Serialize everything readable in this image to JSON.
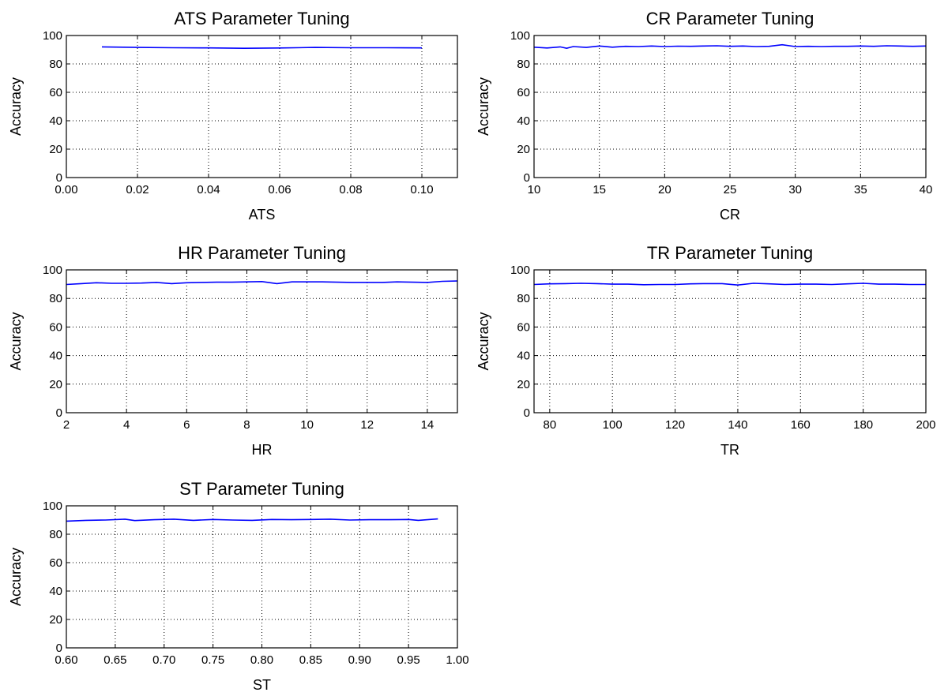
{
  "style": {
    "line_color": "#0000ff",
    "grid_style": "dotted",
    "background": "#ffffff"
  },
  "chart_data": [
    {
      "type": "line",
      "title": "ATS Parameter Tuning",
      "xlabel": "ATS",
      "ylabel": "Accuracy",
      "xlim": [
        0.0,
        0.11
      ],
      "ylim": [
        0,
        100
      ],
      "xticks": [
        "0.00",
        "0.02",
        "0.04",
        "0.06",
        "0.08",
        "0.10"
      ],
      "yticks": [
        "0",
        "20",
        "40",
        "60",
        "80",
        "100"
      ],
      "grid": true,
      "x": [
        0.01,
        0.02,
        0.03,
        0.04,
        0.05,
        0.06,
        0.07,
        0.08,
        0.09,
        0.1
      ],
      "y": [
        92.0,
        91.6,
        91.4,
        91.3,
        91.0,
        91.2,
        91.6,
        91.4,
        91.4,
        91.3
      ]
    },
    {
      "type": "line",
      "title": "CR Parameter Tuning",
      "xlabel": "CR",
      "ylabel": "Accuracy",
      "xlim": [
        10,
        40
      ],
      "ylim": [
        0,
        100
      ],
      "xticks": [
        "10",
        "15",
        "20",
        "25",
        "30",
        "35",
        "40"
      ],
      "yticks": [
        "0",
        "20",
        "40",
        "60",
        "80",
        "100"
      ],
      "grid": true,
      "x": [
        10,
        11,
        12,
        12.5,
        13,
        14,
        15,
        16,
        17,
        18,
        19,
        20,
        21,
        22,
        23,
        24,
        25,
        26,
        27,
        28,
        29,
        30,
        31,
        32,
        33,
        34,
        35,
        36,
        37,
        38,
        39,
        40
      ],
      "y": [
        91.8,
        91.2,
        92.0,
        91.0,
        92.2,
        91.6,
        92.6,
        91.8,
        92.4,
        92.2,
        92.6,
        92.2,
        92.5,
        92.4,
        92.6,
        92.8,
        92.4,
        92.6,
        92.2,
        92.4,
        93.5,
        92.2,
        92.4,
        92.2,
        92.4,
        92.4,
        92.6,
        92.4,
        92.8,
        92.6,
        92.4,
        92.6
      ]
    },
    {
      "type": "line",
      "title": "HR Parameter Tuning",
      "xlabel": "HR",
      "ylabel": "Accuracy",
      "xlim": [
        2,
        15
      ],
      "ylim": [
        0,
        100
      ],
      "xticks": [
        "2",
        "4",
        "6",
        "8",
        "10",
        "12",
        "14"
      ],
      "yticks": [
        "0",
        "20",
        "40",
        "60",
        "80",
        "100"
      ],
      "grid": true,
      "x": [
        2,
        2.5,
        3,
        3.5,
        4,
        4.5,
        5,
        5.5,
        6,
        6.5,
        7,
        7.5,
        8,
        8.5,
        9,
        9.5,
        10,
        10.5,
        11,
        11.5,
        12,
        12.5,
        13,
        13.5,
        14,
        14.5,
        15
      ],
      "y": [
        89.8,
        90.4,
        91.0,
        90.6,
        90.6,
        90.8,
        91.2,
        90.4,
        91.0,
        91.2,
        91.4,
        91.4,
        91.6,
        91.8,
        90.4,
        91.6,
        91.6,
        91.6,
        91.4,
        91.2,
        91.2,
        91.2,
        91.6,
        91.4,
        91.2,
        92.0,
        92.2
      ]
    },
    {
      "type": "line",
      "title": "TR Parameter Tuning",
      "xlabel": "TR",
      "ylabel": "Accuracy",
      "xlim": [
        75,
        200
      ],
      "ylim": [
        0,
        100
      ],
      "xticks": [
        "80",
        "100",
        "120",
        "140",
        "160",
        "180",
        "200"
      ],
      "yticks": [
        "0",
        "20",
        "40",
        "60",
        "80",
        "100"
      ],
      "grid": true,
      "x": [
        75,
        80,
        85,
        90,
        95,
        100,
        105,
        110,
        115,
        120,
        125,
        130,
        135,
        140,
        145,
        150,
        155,
        160,
        165,
        170,
        175,
        180,
        185,
        190,
        195,
        200
      ],
      "y": [
        89.8,
        90.2,
        90.4,
        90.6,
        90.4,
        90.0,
        90.0,
        89.6,
        89.8,
        89.8,
        90.2,
        90.4,
        90.4,
        89.4,
        90.6,
        90.2,
        89.8,
        90.0,
        90.0,
        89.8,
        90.2,
        90.6,
        90.0,
        90.0,
        89.8,
        89.8
      ]
    },
    {
      "type": "line",
      "title": "ST Parameter Tuning",
      "xlabel": "ST",
      "ylabel": "Accuracy",
      "xlim": [
        0.6,
        1.0
      ],
      "ylim": [
        0,
        100
      ],
      "xticks": [
        "0.60",
        "0.65",
        "0.70",
        "0.75",
        "0.80",
        "0.85",
        "0.90",
        "0.95",
        "1.00"
      ],
      "yticks": [
        "0",
        "20",
        "40",
        "60",
        "80",
        "100"
      ],
      "grid": true,
      "x": [
        0.6,
        0.62,
        0.64,
        0.66,
        0.67,
        0.69,
        0.71,
        0.73,
        0.75,
        0.77,
        0.79,
        0.81,
        0.83,
        0.85,
        0.87,
        0.89,
        0.91,
        0.93,
        0.95,
        0.96,
        0.98
      ],
      "y": [
        89.2,
        89.8,
        90.0,
        90.6,
        89.6,
        90.2,
        90.6,
        89.8,
        90.4,
        90.0,
        89.8,
        90.4,
        90.2,
        90.4,
        90.6,
        90.0,
        90.2,
        90.2,
        90.4,
        89.8,
        90.8
      ]
    }
  ]
}
